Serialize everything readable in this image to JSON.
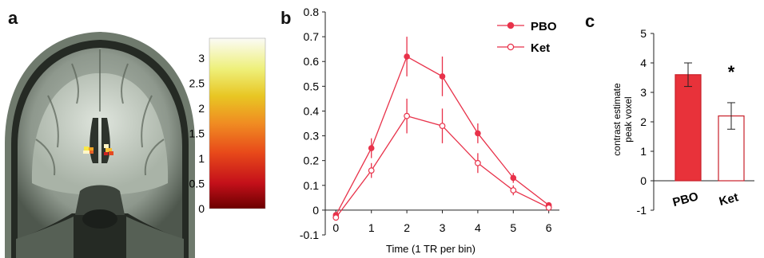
{
  "panels": {
    "a": "a",
    "b": "b",
    "c": "c"
  },
  "colorbar": {
    "ticks": [
      "3",
      "2.5",
      "2",
      "1.5",
      "1",
      "0.5",
      "0"
    ],
    "values": [
      3,
      2.5,
      2,
      1.5,
      1,
      0.5,
      0
    ],
    "range": [
      0,
      3.4
    ]
  },
  "chart_data": [
    {
      "type": "line",
      "xlabel": "Time (1 TR per bin)",
      "ylabel": "",
      "x": [
        0,
        1,
        2,
        3,
        4,
        5,
        6
      ],
      "xticks": [
        "0",
        "1",
        "2",
        "3",
        "4",
        "5",
        "6"
      ],
      "yticks": [
        "0.8",
        "0.7",
        "0.6",
        "0.5",
        "0.4",
        "0.3",
        "0.2",
        "0.1",
        "0",
        "-0.1"
      ],
      "ytick_values": [
        0.8,
        0.7,
        0.6,
        0.5,
        0.4,
        0.3,
        0.2,
        0.1,
        0,
        -0.1
      ],
      "ylim": [
        -0.1,
        0.8
      ],
      "xlim": [
        -0.3,
        6.3
      ],
      "legend_position": "top-right",
      "series": [
        {
          "name": "PBO",
          "marker": "filled",
          "color": "#e8324a",
          "values": [
            -0.02,
            0.25,
            0.62,
            0.54,
            0.31,
            0.13,
            0.02
          ],
          "errors": [
            0.01,
            0.04,
            0.08,
            0.08,
            0.04,
            0.02,
            0.01
          ]
        },
        {
          "name": "Ket",
          "marker": "open",
          "color": "#e8324a",
          "values": [
            -0.03,
            0.16,
            0.38,
            0.34,
            0.19,
            0.08,
            0.01
          ],
          "errors": [
            0.01,
            0.03,
            0.07,
            0.07,
            0.04,
            0.02,
            0.01
          ]
        }
      ]
    },
    {
      "type": "bar",
      "ylabel": "contrast estimate peak voxel",
      "ylabel_lines": [
        "contrast estimate",
        "peak voxel"
      ],
      "categories": [
        "PBO",
        "Ket"
      ],
      "values": [
        3.6,
        2.2
      ],
      "errors": [
        0.4,
        0.45
      ],
      "fills": [
        "#e8323a",
        "#ffffff"
      ],
      "stroke": "#c8202a",
      "yticks": [
        "5",
        "4",
        "3",
        "2",
        "1",
        "0",
        "-1"
      ],
      "ytick_values": [
        5,
        4,
        3,
        2,
        1,
        0,
        -1
      ],
      "ylim": [
        -1,
        5
      ],
      "annotation": "*"
    }
  ]
}
